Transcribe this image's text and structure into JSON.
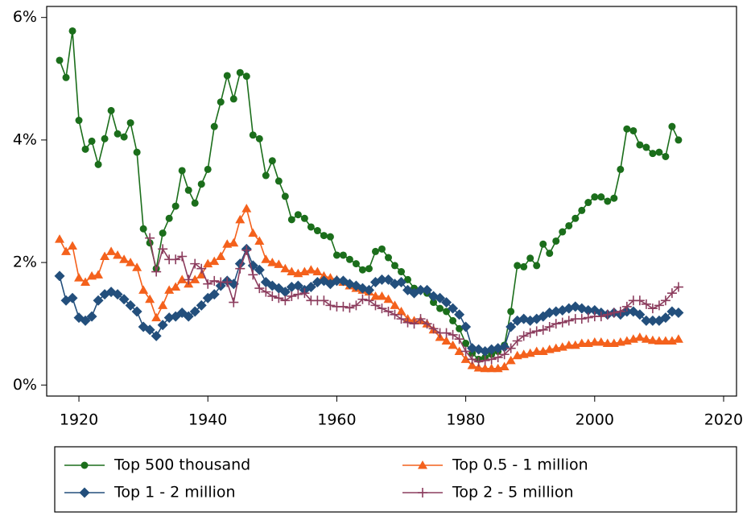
{
  "chart_data": {
    "type": "line",
    "x": [
      1917,
      1918,
      1919,
      1920,
      1921,
      1922,
      1923,
      1924,
      1925,
      1926,
      1927,
      1928,
      1929,
      1930,
      1931,
      1932,
      1933,
      1934,
      1935,
      1936,
      1937,
      1938,
      1939,
      1940,
      1941,
      1942,
      1943,
      1944,
      1945,
      1946,
      1947,
      1948,
      1949,
      1950,
      1951,
      1952,
      1953,
      1954,
      1955,
      1956,
      1957,
      1958,
      1959,
      1960,
      1961,
      1962,
      1963,
      1964,
      1965,
      1966,
      1967,
      1968,
      1969,
      1970,
      1971,
      1972,
      1973,
      1974,
      1975,
      1976,
      1977,
      1978,
      1979,
      1980,
      1981,
      1982,
      1983,
      1984,
      1985,
      1986,
      1987,
      1988,
      1989,
      1990,
      1991,
      1992,
      1993,
      1994,
      1995,
      1996,
      1997,
      1998,
      1999,
      2000,
      2001,
      2002,
      2003,
      2004,
      2005,
      2006,
      2007,
      2008,
      2009,
      2010,
      2011,
      2012,
      2013
    ],
    "series": [
      {
        "name": "Top 500 thousand",
        "color": "#1b6e1b",
        "marker": "circle",
        "values": [
          5.3,
          5.02,
          5.78,
          4.32,
          3.85,
          3.98,
          3.6,
          4.02,
          4.48,
          4.1,
          4.05,
          4.28,
          3.8,
          2.55,
          2.32,
          1.9,
          2.48,
          2.72,
          2.92,
          3.5,
          3.18,
          2.97,
          3.28,
          3.52,
          4.22,
          4.62,
          5.05,
          4.67,
          5.1,
          5.04,
          4.08,
          4.02,
          3.42,
          3.66,
          3.33,
          3.08,
          2.7,
          2.78,
          2.72,
          2.58,
          2.52,
          2.44,
          2.42,
          2.12,
          2.12,
          2.05,
          1.98,
          1.88,
          1.9,
          2.18,
          2.22,
          2.08,
          1.95,
          1.85,
          1.72,
          1.58,
          1.55,
          1.5,
          1.35,
          1.25,
          1.2,
          1.05,
          0.92,
          0.68,
          0.52,
          0.42,
          0.45,
          0.5,
          0.55,
          0.65,
          1.2,
          1.95,
          1.93,
          2.07,
          1.95,
          2.3,
          2.15,
          2.35,
          2.5,
          2.6,
          2.72,
          2.85,
          2.98,
          3.07,
          3.07,
          3.0,
          3.05,
          3.52,
          4.18,
          4.15,
          3.92,
          3.88,
          3.78,
          3.8,
          3.73,
          4.22,
          4.0
        ]
      },
      {
        "name": "Top 0.5 - 1 million",
        "color": "#f4611c",
        "marker": "triangle",
        "values": [
          2.38,
          2.18,
          2.27,
          1.75,
          1.68,
          1.78,
          1.8,
          2.1,
          2.18,
          2.12,
          2.05,
          2.0,
          1.92,
          1.55,
          1.4,
          1.1,
          1.3,
          1.55,
          1.6,
          1.72,
          1.65,
          1.72,
          1.8,
          1.98,
          2.02,
          2.1,
          2.3,
          2.32,
          2.7,
          2.88,
          2.48,
          2.35,
          2.05,
          2.0,
          1.97,
          1.9,
          1.85,
          1.82,
          1.85,
          1.88,
          1.85,
          1.78,
          1.75,
          1.72,
          1.68,
          1.62,
          1.58,
          1.55,
          1.52,
          1.45,
          1.45,
          1.4,
          1.3,
          1.2,
          1.08,
          1.05,
          1.05,
          1.0,
          0.9,
          0.78,
          0.72,
          0.65,
          0.55,
          0.42,
          0.32,
          0.28,
          0.27,
          0.27,
          0.27,
          0.3,
          0.4,
          0.48,
          0.5,
          0.52,
          0.55,
          0.55,
          0.58,
          0.6,
          0.62,
          0.65,
          0.65,
          0.68,
          0.68,
          0.7,
          0.7,
          0.68,
          0.68,
          0.7,
          0.72,
          0.75,
          0.78,
          0.75,
          0.73,
          0.72,
          0.72,
          0.72,
          0.75
        ]
      },
      {
        "name": "Top 1 - 2 million",
        "color": "#234f7c",
        "marker": "diamond",
        "values": [
          1.78,
          1.38,
          1.42,
          1.1,
          1.05,
          1.12,
          1.38,
          1.48,
          1.52,
          1.48,
          1.4,
          1.3,
          1.2,
          0.95,
          0.9,
          0.8,
          0.98,
          1.1,
          1.12,
          1.18,
          1.12,
          1.2,
          1.3,
          1.42,
          1.48,
          1.62,
          1.7,
          1.65,
          1.98,
          2.22,
          1.95,
          1.88,
          1.68,
          1.62,
          1.58,
          1.52,
          1.6,
          1.62,
          1.55,
          1.6,
          1.68,
          1.7,
          1.65,
          1.7,
          1.7,
          1.65,
          1.62,
          1.58,
          1.55,
          1.68,
          1.72,
          1.72,
          1.65,
          1.68,
          1.55,
          1.5,
          1.55,
          1.55,
          1.45,
          1.42,
          1.35,
          1.25,
          1.15,
          0.95,
          0.6,
          0.58,
          0.55,
          0.58,
          0.6,
          0.62,
          0.95,
          1.05,
          1.08,
          1.05,
          1.08,
          1.12,
          1.18,
          1.2,
          1.22,
          1.25,
          1.28,
          1.25,
          1.22,
          1.22,
          1.18,
          1.15,
          1.18,
          1.15,
          1.2,
          1.2,
          1.15,
          1.05,
          1.05,
          1.05,
          1.1,
          1.2,
          1.18
        ]
      },
      {
        "name": "Top 2 - 5 million",
        "color": "#8c3d5e",
        "marker": "plus",
        "values": [
          null,
          null,
          null,
          null,
          null,
          null,
          null,
          null,
          null,
          null,
          null,
          null,
          null,
          null,
          2.4,
          1.85,
          2.22,
          2.05,
          2.05,
          2.1,
          1.72,
          1.98,
          1.9,
          1.65,
          1.7,
          1.68,
          1.68,
          1.35,
          1.9,
          2.2,
          1.8,
          1.58,
          1.52,
          1.45,
          1.42,
          1.38,
          1.45,
          1.48,
          1.5,
          1.38,
          1.38,
          1.38,
          1.3,
          1.28,
          1.28,
          1.26,
          1.3,
          1.4,
          1.38,
          1.3,
          1.25,
          1.2,
          1.15,
          1.08,
          1.02,
          1.0,
          1.08,
          1.0,
          0.92,
          0.85,
          0.85,
          0.82,
          0.75,
          0.55,
          0.42,
          0.38,
          0.4,
          0.42,
          0.45,
          0.5,
          0.6,
          0.72,
          0.8,
          0.85,
          0.88,
          0.9,
          0.95,
          1.0,
          1.02,
          1.05,
          1.08,
          1.08,
          1.1,
          1.12,
          1.12,
          1.15,
          1.18,
          1.2,
          1.28,
          1.38,
          1.38,
          1.32,
          1.25,
          1.3,
          1.38,
          1.5,
          1.6
        ]
      }
    ],
    "xlim": [
      1915,
      2022
    ],
    "xticks": [
      1920,
      1940,
      1960,
      1980,
      2000,
      2020
    ],
    "ylim": [
      -0.18,
      6.18
    ],
    "yticks": [
      {
        "value": 0,
        "label": "0%"
      },
      {
        "value": 2,
        "label": "2%"
      },
      {
        "value": 4,
        "label": "4%"
      },
      {
        "value": 6,
        "label": "6%"
      }
    ],
    "legend": "bottom"
  }
}
